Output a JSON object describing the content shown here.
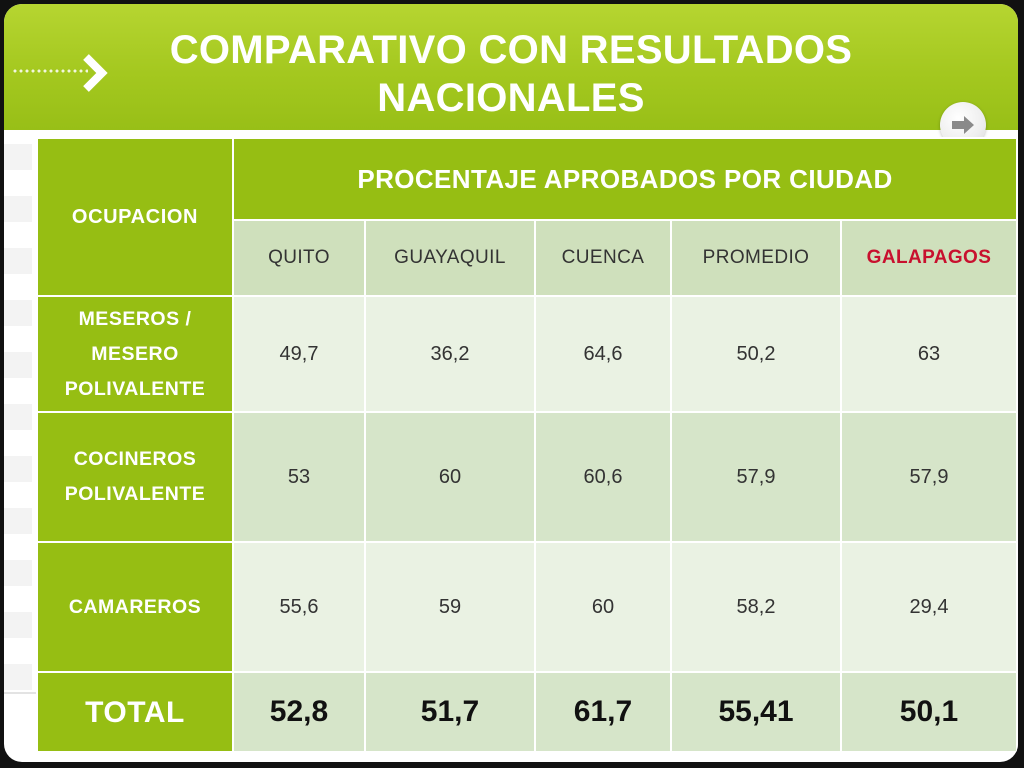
{
  "slide": {
    "title_line1": "COMPARATIVO CON RESULTADOS",
    "title_line2": "NACIONALES"
  },
  "icons": {
    "title_chevron": "chevron-right-icon",
    "next_button": "arrow-right-icon"
  },
  "colors": {
    "brand_green": "#96be13",
    "header_bg": "#a4c81f",
    "subheader_bg": "#cfe0bc",
    "row_light": "#eaf2e3",
    "row_dark": "#d6e5c9",
    "galapagos_red": "#c8102e"
  },
  "chart_data": {
    "type": "table",
    "title": "COMPARATIVO CON RESULTADOS NACIONALES",
    "row_header_label": "OCUPACION",
    "column_group_label": "PROCENTAJE APROBADOS POR CIUDAD",
    "columns": [
      "QUITO",
      "GUAYAQUIL",
      "CUENCA",
      "PROMEDIO",
      "GALAPAGOS"
    ],
    "rows": [
      {
        "label_lines": [
          "MESEROS /",
          "MESERO",
          "POLIVALENTE"
        ],
        "values": [
          "49,7",
          "36,2",
          "64,6",
          "50,2",
          "63"
        ]
      },
      {
        "label_lines": [
          "COCINEROS",
          "POLIVALENTE"
        ],
        "values": [
          "53",
          "60",
          "60,6",
          "57,9",
          "57,9"
        ]
      },
      {
        "label_lines": [
          "CAMAREROS"
        ],
        "values": [
          "55,6",
          "59",
          "60",
          "58,2",
          "29,4"
        ]
      }
    ],
    "total": {
      "label": "TOTAL",
      "values": [
        "52,8",
        "51,7",
        "61,7",
        "55,41",
        "50,1"
      ]
    }
  }
}
